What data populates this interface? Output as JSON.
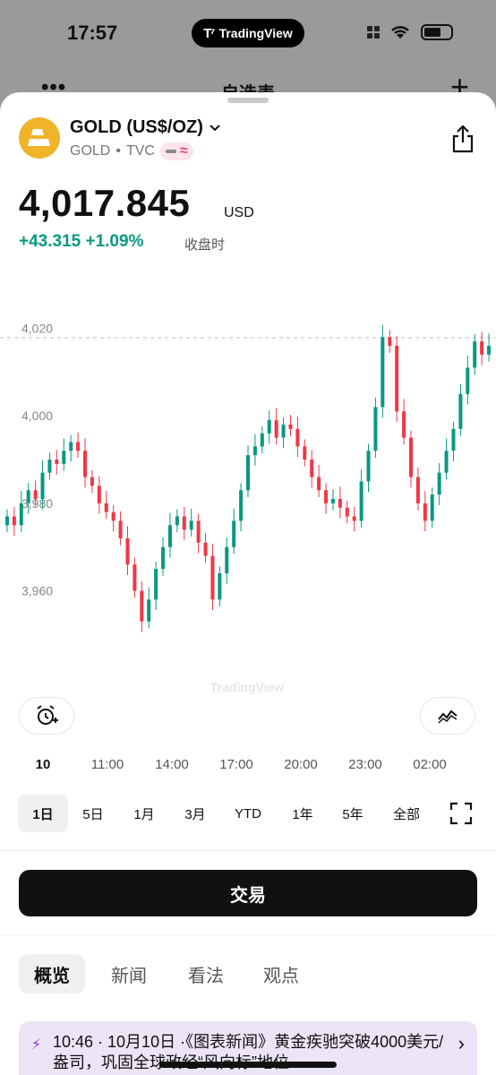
{
  "status_bar": {
    "time": "17:57",
    "app_pill": "TradingView",
    "icons": [
      "signal-icon",
      "wifi-icon",
      "battery-icon"
    ]
  },
  "behind_sheet": {
    "title": "自选表",
    "more_icon": "more-icon",
    "add_icon": "plus-icon"
  },
  "symbol": {
    "name": "GOLD (US$/OZ)",
    "ticker": "GOLD",
    "separator": "•",
    "exchange": "TVC",
    "icon": "gold-bars-icon",
    "share_icon": "share-icon",
    "brand_color": "#f0b429"
  },
  "quote": {
    "price": "4,017.845",
    "currency": "USD",
    "change": "+43.315 +1.09%",
    "status": "收盘时",
    "change_color": "#089981"
  },
  "chart_data": {
    "type": "candlestick",
    "watermark": "TradingView",
    "y_ticks": [
      "4,020",
      "4,000",
      "3,980",
      "3,960"
    ],
    "y_tick_values": [
      4020,
      4000,
      3980,
      3960
    ],
    "ylim": [
      3947,
      4033
    ],
    "last_price_line": 4017.845,
    "x_ticks": [
      "10",
      "11:00",
      "14:00",
      "17:00",
      "20:00",
      "23:00",
      "02:00"
    ],
    "x_tick_index": [
      0,
      12,
      24,
      36,
      48,
      60,
      72
    ],
    "up_color": "#089981",
    "down_color": "#f23645",
    "closes": [
      3977,
      3975,
      3980,
      3983,
      3981,
      3987,
      3990,
      3989,
      3992,
      3994,
      3992,
      3986,
      3984,
      3980,
      3978,
      3976,
      3972,
      3966,
      3960,
      3953,
      3958,
      3965,
      3970,
      3975,
      3977,
      3974,
      3976,
      3971,
      3968,
      3958,
      3964,
      3970,
      3976,
      3983,
      3991,
      3993,
      3996,
      3999,
      3995,
      3998,
      3997,
      3993,
      3990,
      3986,
      3983,
      3980,
      3981,
      3979,
      3977,
      3976,
      3985,
      3992,
      4002,
      4018,
      4016,
      4001,
      3995,
      3986,
      3980,
      3976,
      3982,
      3987,
      3992,
      3997,
      4005,
      4011,
      4017,
      4014,
      4016
    ],
    "time_scale_icon": "chart-style-icon",
    "alert_icon": "alarm-plus-icon"
  },
  "ranges": {
    "items": [
      "1日",
      "5日",
      "1月",
      "3月",
      "YTD",
      "1年",
      "5年",
      "全部"
    ],
    "active": "1日",
    "fullscreen_icon": "fullscreen-icon"
  },
  "actions": {
    "trade_label": "交易"
  },
  "tabs": {
    "items": [
      "概览",
      "新闻",
      "看法",
      "观点"
    ],
    "active": "概览"
  },
  "news": {
    "text": "10:46 · 10月10日 ·《图表新闻》黄金疾驰突破4000美元/盎司，巩固全球政经“风向标”地位",
    "bolt_icon": "lightning-icon",
    "chevron_icon": "chevron-right-icon"
  }
}
